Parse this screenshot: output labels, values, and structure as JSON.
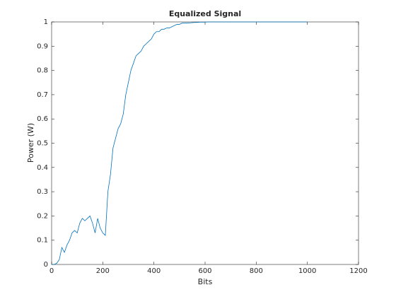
{
  "chart_data": {
    "type": "line",
    "title": "Equalized Signal",
    "x_label": "Bits",
    "y_label": "Power (W)",
    "x": [
      0,
      10,
      20,
      30,
      40,
      50,
      60,
      70,
      80,
      90,
      100,
      110,
      120,
      130,
      140,
      150,
      160,
      170,
      180,
      190,
      200,
      210,
      220,
      230,
      240,
      250,
      260,
      270,
      280,
      290,
      300,
      310,
      320,
      330,
      340,
      350,
      360,
      370,
      380,
      390,
      400,
      410,
      420,
      430,
      440,
      450,
      460,
      470,
      480,
      490,
      500,
      510,
      520,
      530,
      540,
      550,
      560,
      570,
      580,
      590,
      600,
      610,
      620,
      630,
      640,
      650,
      660,
      670,
      680,
      690,
      700,
      710,
      720,
      730,
      740,
      750,
      760,
      770,
      780,
      790,
      800,
      810,
      820,
      830,
      840,
      850,
      860,
      870,
      880,
      890,
      900,
      910,
      920,
      930,
      940,
      950,
      960,
      970,
      980,
      990,
      1000
    ],
    "series": [
      {
        "name": "Equalized",
        "color": "#0072bd",
        "values": [
          0,
          0,
          0.005,
          0.02,
          0.07,
          0.05,
          0.08,
          0.1,
          0.13,
          0.14,
          0.13,
          0.17,
          0.19,
          0.18,
          0.19,
          0.2,
          0.17,
          0.13,
          0.19,
          0.15,
          0.13,
          0.12,
          0.3,
          0.37,
          0.48,
          0.52,
          0.56,
          0.58,
          0.62,
          0.7,
          0.75,
          0.8,
          0.83,
          0.86,
          0.87,
          0.88,
          0.9,
          0.91,
          0.92,
          0.93,
          0.95,
          0.96,
          0.96,
          0.97,
          0.97,
          0.975,
          0.975,
          0.98,
          0.985,
          0.99,
          0.99,
          0.995,
          0.995,
          0.995,
          0.996,
          0.997,
          0.998,
          0.998,
          0.999,
          0.999,
          0.999,
          1,
          1,
          1,
          1,
          1,
          1,
          1,
          1,
          1,
          1,
          1,
          1,
          1,
          1,
          1,
          1,
          1,
          1,
          1,
          1,
          1,
          1,
          1,
          1,
          1,
          1,
          1,
          1,
          1,
          1,
          1,
          1,
          1,
          1,
          1,
          1,
          1,
          1,
          1,
          1
        ]
      }
    ],
    "xlim": [
      0,
      1200
    ],
    "xticks": [
      0,
      200,
      400,
      600,
      800,
      1000,
      1200
    ],
    "ylim": [
      0,
      1
    ],
    "yticks": [
      0,
      0.1,
      0.2,
      0.3,
      0.4,
      0.5,
      0.6,
      0.7,
      0.8,
      0.9,
      1
    ]
  }
}
